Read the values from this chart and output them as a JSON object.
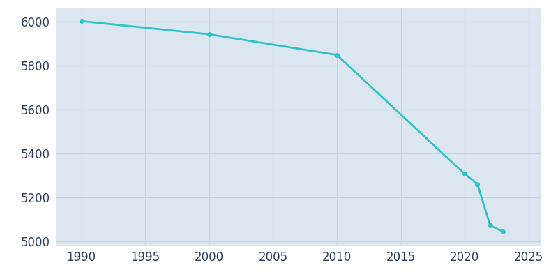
{
  "years": [
    1990,
    2000,
    2010,
    2020,
    2021,
    2022,
    2023
  ],
  "population": [
    6002,
    5942,
    5848,
    5306,
    5261,
    5071,
    5044
  ],
  "line_color": "#2ec4c4",
  "marker_color": "#2ec4c4",
  "fig_bg_color": "#ffffff",
  "plot_bg_color": "#dce6f0",
  "grid_color": "#c5d3e8",
  "xlim": [
    1988,
    2026
  ],
  "ylim": [
    4980,
    6060
  ],
  "xticks": [
    1990,
    1995,
    2000,
    2005,
    2010,
    2015,
    2020,
    2025
  ],
  "yticks": [
    5000,
    5200,
    5400,
    5600,
    5800,
    6000
  ],
  "tick_color": "#2a3a5c",
  "tick_fontsize": 12,
  "linewidth": 2.0,
  "markersize": 4
}
